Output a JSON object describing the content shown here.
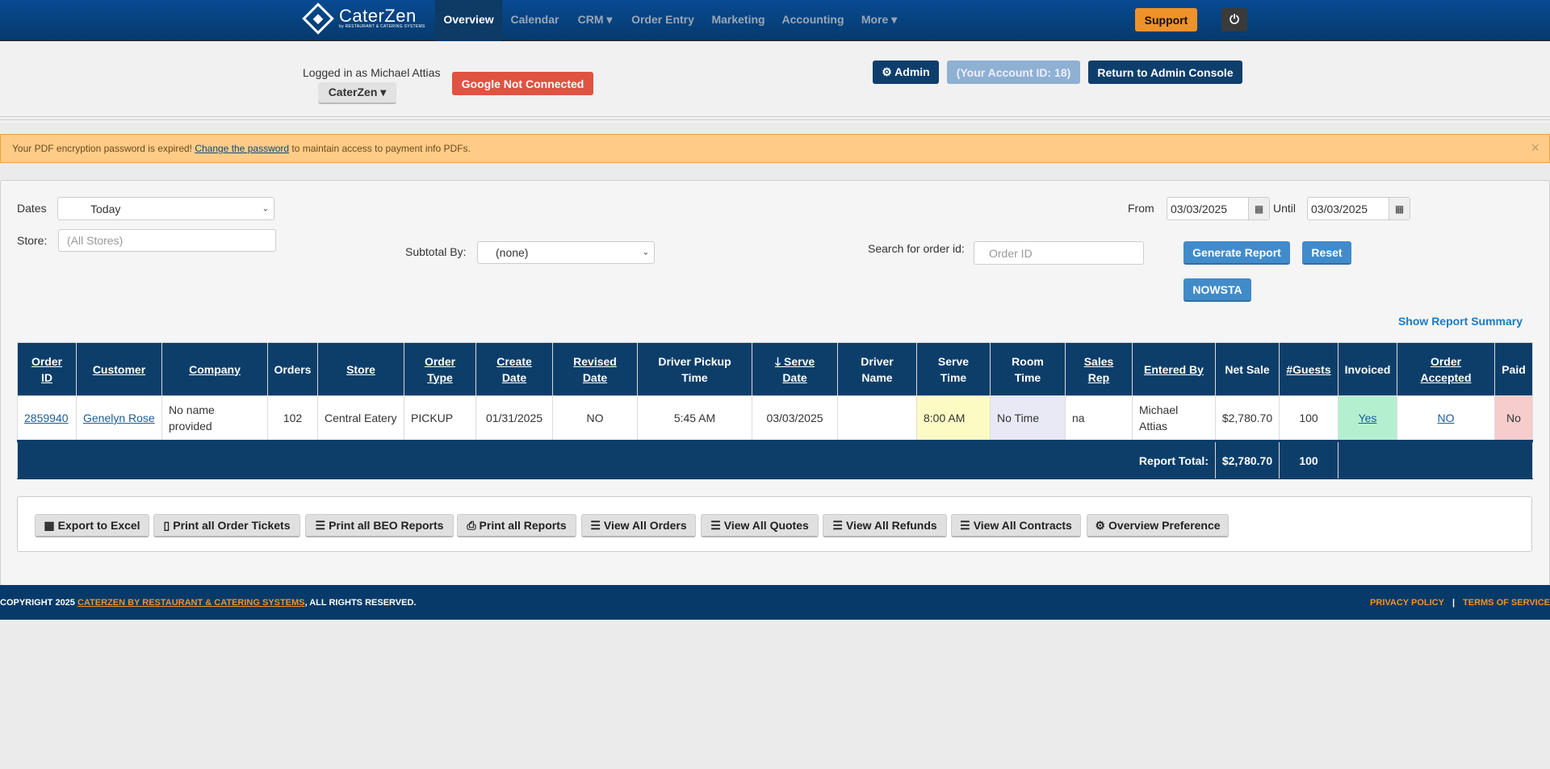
{
  "nav": {
    "brand": "CaterZen",
    "brand_sub": "by RESTAURANT & CATERING SYSTEMS",
    "items": [
      {
        "label": "Overview",
        "active": true
      },
      {
        "label": "Calendar"
      },
      {
        "label": "CRM ▾"
      },
      {
        "label": "Order Entry"
      },
      {
        "label": "Marketing"
      },
      {
        "label": "Accounting"
      },
      {
        "label": "More ▾"
      }
    ],
    "support": "Support",
    "power_icon": "power-icon"
  },
  "header": {
    "logged_in": "Logged in as Michael Attias",
    "account_dropdown": "CaterZen ▾",
    "google": "Google Not Connected",
    "admin": "⚙ Admin",
    "account_id": "(Your Account ID: 18)",
    "return": "Return to Admin Console"
  },
  "alert": {
    "before": "Your PDF encryption password is expired! ",
    "link": "Change the password",
    "after": " to maintain access to payment info PDFs.",
    "close": "×"
  },
  "filters": {
    "dates_label": "Dates",
    "dates_value": "Today",
    "store_label": "Store:",
    "store_placeholder": "(All Stores)",
    "subtotal_label": "Subtotal By:",
    "subtotal_value": "(none)",
    "search_label": "Search for order id:",
    "search_placeholder": "Order ID",
    "from_label": "From",
    "from_value": "03/03/2025",
    "until_label": "Until",
    "until_value": "03/03/2025",
    "generate": "Generate Report",
    "reset": "Reset",
    "nowsta": "NOWSTA",
    "summary": "Show Report Summary"
  },
  "table": {
    "headers": [
      [
        "Order",
        "ID"
      ],
      [
        "Customer"
      ],
      [
        "Company"
      ],
      [
        "Orders"
      ],
      [
        "Store"
      ],
      [
        "Order",
        "Type"
      ],
      [
        "Create",
        "Date"
      ],
      [
        "Revised",
        "Date"
      ],
      [
        "Driver Pickup",
        "Time"
      ],
      [
        "🡓 Serve",
        "Date"
      ],
      [
        "Driver",
        "Name"
      ],
      [
        "Serve",
        "Time"
      ],
      [
        "Room",
        "Time"
      ],
      [
        "Sales",
        "Rep"
      ],
      [
        "Entered By"
      ],
      [
        "Net Sale"
      ],
      [
        "#Guests"
      ],
      [
        "Invoiced"
      ],
      [
        "Order",
        "Accepted"
      ],
      [
        "Paid"
      ]
    ],
    "rows": [
      {
        "order_id": "2859940",
        "customer": "Genelyn Rose",
        "company": "No name provided",
        "orders": "102",
        "store": "Central Eatery",
        "order_type": "PICKUP",
        "create_date": "01/31/2025",
        "revised_date": "NO",
        "driver_pickup": "5:45 AM",
        "serve_date": "03/03/2025",
        "driver_name": "",
        "serve_time": "8:00 AM",
        "room_time": "No Time",
        "sales_rep": "na",
        "entered_by": "Michael Attias",
        "net_sale": "$2,780.70",
        "guests": "100",
        "invoiced": "Yes",
        "order_accepted": "NO",
        "paid": "No"
      }
    ],
    "total_label": "Report Total:",
    "total_net": "$2,780.70",
    "total_guests": "100"
  },
  "actions": [
    {
      "icon": "▦",
      "label": "Export to Excel"
    },
    {
      "icon": "▯",
      "label": "Print all Order Tickets"
    },
    {
      "icon": "☰",
      "label": "Print all BEO Reports"
    },
    {
      "icon": "⎙",
      "label": "Print all Reports"
    },
    {
      "icon": "☰",
      "label": "View All Orders"
    },
    {
      "icon": "☰",
      "label": "View All Quotes"
    },
    {
      "icon": "☰",
      "label": "View All Refunds"
    },
    {
      "icon": "☰",
      "label": "View All Contracts"
    },
    {
      "icon": "⚙",
      "label": "Overview Preference"
    }
  ],
  "footer": {
    "copy": "COPYRIGHT 2025 ",
    "link": "CATERZEN BY RESTAURANT & CATERING SYSTEMS",
    "rights": ", ALL RIGHTS RESERVED.",
    "privacy": "PRIVACY POLICY",
    "terms": "TERMS OF SERVICE"
  },
  "colors": {
    "nav": "#063a6c",
    "support": "#f0922a",
    "google": "#e05241",
    "table_header": "#0d3e6a",
    "serve_time_bg": "#fdfbc4",
    "room_time_bg": "#e9e9f5",
    "invoiced_bg": "#b4f0d0",
    "paid_bg": "#f6cccc"
  }
}
